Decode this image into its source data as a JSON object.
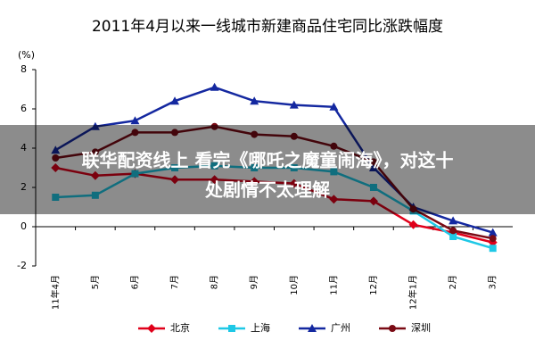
{
  "chart_data": {
    "type": "line",
    "title": "2011年4月以来一线城市新建商品住宅同比涨跌幅度",
    "y_label": "(%)",
    "categories": [
      "11年4月",
      "5月",
      "6月",
      "7月",
      "8月",
      "9月",
      "10月",
      "11月",
      "12月",
      "12年1月",
      "2月",
      "3月"
    ],
    "series": [
      {
        "name": "北京",
        "color": "#e0001a",
        "marker": "diamond",
        "values": [
          3.0,
          2.6,
          2.7,
          2.4,
          2.4,
          2.3,
          2.2,
          1.4,
          1.3,
          0.1,
          -0.3,
          -0.8
        ]
      },
      {
        "name": "上海",
        "color": "#1ec8e6",
        "marker": "square",
        "values": [
          1.5,
          1.6,
          2.7,
          3.0,
          3.1,
          3.0,
          3.0,
          2.8,
          2.0,
          0.8,
          -0.5,
          -1.1
        ]
      },
      {
        "name": "广州",
        "color": "#1428a0",
        "marker": "triangle",
        "values": [
          3.9,
          5.1,
          5.4,
          6.4,
          7.1,
          6.4,
          6.2,
          6.1,
          3.0,
          1.0,
          0.3,
          -0.3
        ]
      },
      {
        "name": "深圳",
        "color": "#7a0a14",
        "marker": "circle",
        "values": [
          3.5,
          3.8,
          4.8,
          4.8,
          5.1,
          4.7,
          4.6,
          4.1,
          3.3,
          0.9,
          -0.2,
          -0.6
        ]
      }
    ],
    "ylim": [
      -2,
      8
    ],
    "yticks": [
      -2,
      0,
      2,
      4,
      6,
      8
    ],
    "x_axis_crosses": 0,
    "grid": false,
    "legend": "bottom"
  },
  "overlay_text": [
    "联华配资线上 看完《哪吒之魔童闹海》，对这十",
    "处剧情不太理解"
  ]
}
